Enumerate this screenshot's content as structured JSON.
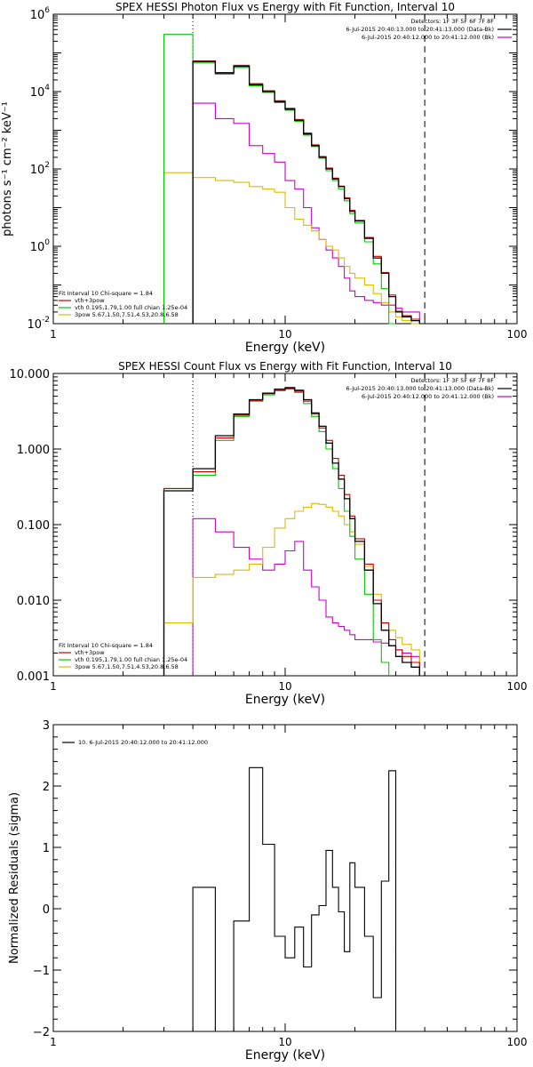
{
  "chart_data": [
    {
      "type": "line",
      "title": "SPEX HESSI Photon Flux vs Energy with Fit Function, Interval 10",
      "xlabel": "Energy (keV)",
      "ylabel": "photons s⁻¹ cm⁻² keV⁻¹",
      "xscale": "log",
      "yscale": "log",
      "xlim": [
        1,
        100
      ],
      "ylim": [
        0.01,
        1000000
      ],
      "grid": false,
      "x_tick_labels": [
        "1",
        "10",
        "100"
      ],
      "y_ticks": [
        {
          "v": 0.01,
          "base": "10",
          "exp": "-2"
        },
        {
          "v": 1,
          "base": "10",
          "exp": "0"
        },
        {
          "v": 100,
          "base": "10",
          "exp": "2"
        },
        {
          "v": 10000,
          "base": "10",
          "exp": "4"
        },
        {
          "v": 1000000,
          "base": "10",
          "exp": "6"
        }
      ],
      "vlines": [
        {
          "x": 4.0,
          "style": "dotted"
        },
        {
          "x": 40.0,
          "style": "dashed"
        }
      ],
      "legend_topright": [
        {
          "text": "Detectors: 1F 3F 5F 6F 7F 8F",
          "color": "#000000"
        },
        {
          "text": "6-Jul-2015 20:40:13.000 to 20:41:13.000 (Data-Bk)",
          "color": "#000000"
        },
        {
          "text": "6-Jul-2015 20:40:12.000 to 20:41:12.000 (Bk)",
          "color": "#cc00cc"
        }
      ],
      "legend_bottomleft": [
        {
          "text": "Fit Interval 10   Chi-square = 1.84",
          "color": "#000000"
        },
        {
          "text": "vth+3pow",
          "color": "#cc0000"
        },
        {
          "text": "vth 0.195,1.79,1.00  full chian 1.25e-04",
          "color": "#00cc00"
        },
        {
          "text": "3pow 5.67,1.50,7.51,4.53,20.8,6.58",
          "color": "#ddbb00"
        }
      ],
      "bin_edges": [
        3.0,
        4.0,
        5.0,
        6.0,
        7.0,
        8.0,
        9.0,
        10.0,
        11.0,
        12.0,
        13.0,
        14.0,
        15.0,
        16.0,
        17.0,
        18.0,
        19.0,
        20.0,
        22.0,
        24.0,
        26.0,
        28.0,
        30.0,
        32.0,
        35.0,
        38.0,
        41.0
      ],
      "series": [
        {
          "name": "Data-Bk",
          "color": "#000000",
          "width": 1.3,
          "values": [
            null,
            60000,
            30000,
            45000,
            15000,
            10000,
            5500,
            3500,
            1800,
            800,
            400,
            200,
            100,
            55,
            35,
            17,
            8,
            4.5,
            1.6,
            0.5,
            0.2,
            0.05,
            0.02,
            0.015,
            0.012,
            null
          ]
        },
        {
          "name": "vth+3pow",
          "color": "#cc0000",
          "width": 1.1,
          "values": [
            null,
            62000,
            31000,
            48000,
            16000,
            10500,
            5800,
            3700,
            1900,
            850,
            420,
            210,
            105,
            58,
            36,
            18,
            8.5,
            4.7,
            1.7,
            0.55,
            0.21,
            0.055,
            0.021,
            0.016,
            0.013,
            null
          ]
        },
        {
          "name": "vth",
          "color": "#00cc00",
          "width": 1.1,
          "values": [
            300000,
            55000,
            28000,
            42000,
            14000,
            9500,
            5200,
            3300,
            1700,
            750,
            380,
            190,
            90,
            50,
            30,
            15,
            7,
            4,
            1.3,
            0.35,
            0.08,
            0.01,
            null,
            null,
            null,
            null
          ]
        },
        {
          "name": "3pow",
          "color": "#ddbb00",
          "width": 1.1,
          "values": [
            80,
            60,
            50,
            45,
            35,
            30,
            25,
            10,
            5,
            3.5,
            2.5,
            1.5,
            1.0,
            0.8,
            0.5,
            0.3,
            0.2,
            0.15,
            0.1,
            0.06,
            0.035,
            0.02,
            0.015,
            0.012,
            0.01,
            null
          ]
        },
        {
          "name": "Bk",
          "color": "#cc00cc",
          "width": 1.1,
          "values": [
            null,
            5000,
            2000,
            1500,
            400,
            250,
            150,
            50,
            30,
            10,
            3,
            1.5,
            0.8,
            0.5,
            0.3,
            0.15,
            0.07,
            0.05,
            0.04,
            0.035,
            0.03,
            0.03,
            0.025,
            0.02,
            0.02,
            null
          ]
        }
      ]
    },
    {
      "type": "line",
      "title": "SPEX HESSI Count Flux vs Energy with Fit Function, Interval 10",
      "xlabel": "Energy (keV)",
      "ylabel": "",
      "xscale": "log",
      "yscale": "log",
      "xlim": [
        1,
        100
      ],
      "ylim": [
        0.001,
        10
      ],
      "grid": false,
      "x_tick_labels": [
        "1",
        "10",
        "100"
      ],
      "y_ticks": [
        {
          "v": 0.001,
          "label": "0.001"
        },
        {
          "v": 0.01,
          "label": "0.010"
        },
        {
          "v": 0.1,
          "label": "0.100"
        },
        {
          "v": 1,
          "label": "1.000"
        },
        {
          "v": 10,
          "label": "10.000"
        }
      ],
      "vlines": [
        {
          "x": 4.0,
          "style": "dotted"
        },
        {
          "x": 40.0,
          "style": "dashed"
        }
      ],
      "legend_topright": [
        {
          "text": "Detectors: 1F 3F 5F 6F 7F 8F",
          "color": "#000000"
        },
        {
          "text": "6-Jul-2015 20:40:13.000 to 20:41:13.000 (Data-Bk)",
          "color": "#000000"
        },
        {
          "text": "6-Jul-2015 20:40:12.000 to 20:41:12.000 (Bk)",
          "color": "#cc00cc"
        }
      ],
      "legend_bottomleft": [
        {
          "text": "Fit Interval 10   Chi-square = 1.84",
          "color": "#000000"
        },
        {
          "text": "vth+3pow",
          "color": "#cc0000"
        },
        {
          "text": "vth 0.195,1.79,1.00  full chian 1.25e-04",
          "color": "#00cc00"
        },
        {
          "text": "3pow 5.67,1.50,7.51,4.53,20.8,6.58",
          "color": "#ddbb00"
        }
      ],
      "bin_edges": [
        3.0,
        4.0,
        5.0,
        6.0,
        7.0,
        8.0,
        9.0,
        10.0,
        11.0,
        12.0,
        13.0,
        14.0,
        15.0,
        16.0,
        17.0,
        18.0,
        19.0,
        20.0,
        22.0,
        24.0,
        26.0,
        28.0,
        30.0,
        32.0,
        35.0,
        38.0,
        41.0
      ],
      "series": [
        {
          "name": "Data-Bk",
          "color": "#000000",
          "width": 1.3,
          "values": [
            0.28,
            0.55,
            1.5,
            2.9,
            4.5,
            5.5,
            6.2,
            6.5,
            6.0,
            4.5,
            3.0,
            2.0,
            1.2,
            0.65,
            0.4,
            0.22,
            0.12,
            0.06,
            0.025,
            0.009,
            0.004,
            0.0025,
            0.0018,
            0.0015,
            0.0013,
            null
          ]
        },
        {
          "name": "vth+3pow",
          "color": "#cc0000",
          "width": 1.1,
          "values": [
            0.3,
            0.5,
            1.4,
            2.8,
            4.4,
            5.4,
            6.0,
            6.3,
            5.8,
            4.3,
            2.9,
            1.9,
            1.3,
            0.75,
            0.45,
            0.25,
            0.13,
            0.065,
            0.03,
            0.01,
            0.005,
            0.003,
            0.0022,
            0.0018,
            0.0015,
            null
          ]
        },
        {
          "name": "vth",
          "color": "#00cc00",
          "width": 1.1,
          "values": [
            0.3,
            0.45,
            1.3,
            2.7,
            4.3,
            5.2,
            5.9,
            6.2,
            5.6,
            4.0,
            2.7,
            1.7,
            1.0,
            0.55,
            0.3,
            0.15,
            0.07,
            0.035,
            0.012,
            0.003,
            0.0015,
            null,
            null,
            null,
            null,
            null
          ]
        },
        {
          "name": "3pow",
          "color": "#ddbb00",
          "width": 1.1,
          "values": [
            0.005,
            0.02,
            0.022,
            0.025,
            0.03,
            0.05,
            0.09,
            0.12,
            0.15,
            0.17,
            0.19,
            0.185,
            0.17,
            0.15,
            0.13,
            0.1,
            0.08,
            0.055,
            0.028,
            0.012,
            0.005,
            0.004,
            0.0032,
            0.0026,
            0.0022,
            null
          ]
        },
        {
          "name": "Bk",
          "color": "#cc00cc",
          "width": 1.1,
          "values": [
            null,
            0.12,
            0.08,
            0.05,
            0.035,
            0.025,
            0.03,
            0.045,
            0.06,
            0.025,
            0.015,
            0.01,
            0.006,
            0.005,
            0.0045,
            0.004,
            0.0035,
            0.003,
            0.003,
            0.0028,
            0.0027,
            0.0025,
            0.0022,
            0.002,
            0.0018,
            null
          ]
        }
      ]
    },
    {
      "type": "line",
      "title": "",
      "xlabel": "Energy (keV)",
      "ylabel": "Normalized Residuals (sigma)",
      "xscale": "log",
      "yscale": "linear",
      "xlim": [
        1,
        100
      ],
      "ylim": [
        -2,
        3
      ],
      "grid": false,
      "x_tick_labels": [
        "1",
        "10",
        "100"
      ],
      "y_ticks": [
        {
          "v": -2,
          "label": "−2"
        },
        {
          "v": -1,
          "label": "−1"
        },
        {
          "v": 0,
          "label": "0"
        },
        {
          "v": 1,
          "label": "1"
        },
        {
          "v": 2,
          "label": "2"
        },
        {
          "v": 3,
          "label": "3"
        }
      ],
      "legend_topleft": [
        {
          "text": "10.  6-Jul-2015 20:40:12.000 to 20:41:12.000",
          "color": "#000000"
        }
      ],
      "bin_edges": [
        4.0,
        5.0,
        6.0,
        7.0,
        8.0,
        9.0,
        10.0,
        11.0,
        12.0,
        13.0,
        14.0,
        15.0,
        16.0,
        17.0,
        18.0,
        19.0,
        20.0,
        22.0,
        24.0,
        26.0,
        28.0,
        30.0,
        32.0,
        35.0,
        38.0,
        41.0
      ],
      "series": [
        {
          "name": "10.  6-Jul-2015 20:40:12.000 to 20:41:12.000",
          "color": "#000000",
          "width": 1.1,
          "values": [
            0.35,
            -2.0,
            -0.2,
            2.3,
            1.05,
            -0.45,
            -0.8,
            -0.3,
            -0.95,
            -0.1,
            0.05,
            0.95,
            0.35,
            -0.05,
            -0.7,
            0.75,
            0.35,
            -0.45,
            -1.45,
            0.45,
            2.25,
            -2.05,
            -2.05,
            -2.05,
            -2.05
          ]
        }
      ]
    }
  ]
}
